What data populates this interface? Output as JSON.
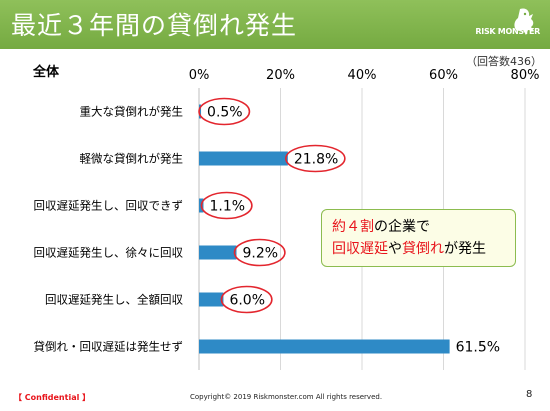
{
  "slide": {
    "title": "最近３年間の貸倒れ発生",
    "logo_text": "RISK MONSTER",
    "respondents": "（回答数436）",
    "callout": {
      "line1_a": "約４割",
      "line1_b": "の企業で",
      "line2_a": "回収遅延",
      "line2_b": "や",
      "line2_c": "貸倒れ",
      "line2_d": "が発生"
    },
    "footer": {
      "confidential": "【 Confidential 】",
      "copyright": "Copyright© 2019 Riskmonster.com All rights reserved.",
      "page": "8"
    }
  },
  "chart_data": {
    "type": "bar",
    "orientation": "horizontal",
    "title": "全体",
    "xlim": [
      0,
      80
    ],
    "x_ticks": [
      "0%",
      "20%",
      "40%",
      "60%",
      "80%"
    ],
    "categories": [
      "重大な貸倒れが発生",
      "軽微な貸倒れが発生",
      "回収遅延発生し、回収できず",
      "回収遅延発生し、徐々に回収",
      "回収遅延発生し、全額回収",
      "貸倒れ・回収遅延は発生せず"
    ],
    "values": [
      0.5,
      21.8,
      1.1,
      9.2,
      6.0,
      61.5
    ],
    "labels": [
      "0.5%",
      "21.8%",
      "1.1%",
      "9.2%",
      "6.0%",
      "61.5%"
    ],
    "circled": [
      true,
      true,
      true,
      true,
      true,
      false
    ],
    "colors": {
      "bar": "#2e8ac6",
      "circle": "#e3262e",
      "grid": "#d9d9d9"
    },
    "grid": true
  }
}
